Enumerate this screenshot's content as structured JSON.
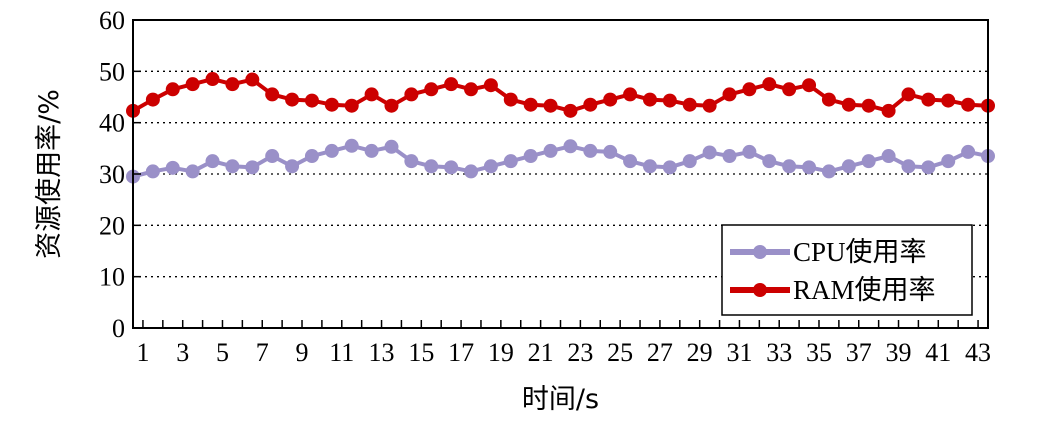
{
  "chart_data": {
    "type": "line",
    "xlabel": "时间/s",
    "ylabel": "资源使用率/%",
    "ylim": [
      0,
      60
    ],
    "yticks": [
      0,
      10,
      20,
      30,
      40,
      50,
      60
    ],
    "xlim": [
      0.5,
      43.5
    ],
    "xticks": [
      1,
      3,
      5,
      7,
      9,
      11,
      13,
      15,
      17,
      19,
      21,
      23,
      25,
      27,
      29,
      31,
      33,
      35,
      37,
      39,
      41,
      43
    ],
    "x": [
      0.5,
      1.5,
      2.5,
      3.5,
      4.5,
      5.5,
      6.5,
      7.5,
      8.5,
      9.5,
      10.5,
      11.5,
      12.5,
      13.5,
      14.5,
      15.5,
      16.5,
      17.5,
      18.5,
      19.5,
      20.5,
      21.5,
      22.5,
      23.5,
      24.5,
      25.5,
      26.5,
      27.5,
      28.5,
      29.5,
      30.5,
      31.5,
      32.5,
      33.5,
      34.5,
      35.5,
      36.5,
      37.5,
      38.5,
      39.5,
      40.5,
      41.5,
      42.5,
      43.5
    ],
    "grid": "horizontal dotted",
    "legend_position": "bottom-right",
    "series": [
      {
        "name": "CPU使用率",
        "color": "#9a90c8",
        "values": [
          29.5,
          30.5,
          31.2,
          30.5,
          32.5,
          31.5,
          31.3,
          33.5,
          31.5,
          33.5,
          34.5,
          35.5,
          34.5,
          35.3,
          32.5,
          31.5,
          31.3,
          30.5,
          31.5,
          32.5,
          33.5,
          34.5,
          35.4,
          34.5,
          34.3,
          32.5,
          31.5,
          31.3,
          32.5,
          34.2,
          33.5,
          34.3,
          32.5,
          31.5,
          31.3,
          30.5,
          31.5,
          32.5,
          33.5,
          31.5,
          31.3,
          32.5,
          34.3,
          33.5
        ]
      },
      {
        "name": "RAM使用率",
        "color": "#cc0000",
        "values": [
          42.3,
          44.5,
          46.5,
          47.5,
          48.5,
          47.5,
          48.4,
          45.5,
          44.5,
          44.3,
          43.5,
          43.3,
          45.5,
          43.3,
          45.5,
          46.5,
          47.5,
          46.5,
          47.3,
          44.5,
          43.5,
          43.3,
          42.3,
          43.5,
          44.5,
          45.5,
          44.5,
          44.3,
          43.5,
          43.3,
          45.5,
          46.5,
          47.5,
          46.5,
          47.3,
          44.5,
          43.5,
          43.3,
          42.3,
          45.5,
          44.5,
          44.3,
          43.5,
          43.3
        ]
      }
    ]
  }
}
